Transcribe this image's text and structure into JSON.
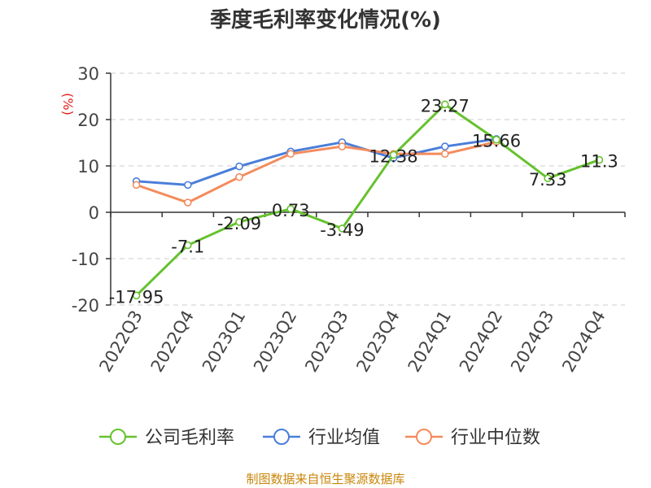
{
  "chart_data": {
    "type": "line",
    "title": "季度毛利率变化情况(%)",
    "ylabel": "(%)",
    "ylim": [
      -20,
      30
    ],
    "yticks": [
      30,
      20,
      10,
      0,
      -10,
      -20
    ],
    "grid": true,
    "legend_position": "bottom",
    "categories": [
      "2022Q3",
      "2022Q4",
      "2023Q1",
      "2023Q2",
      "2023Q3",
      "2023Q4",
      "2024Q1",
      "2024Q2",
      "2024Q3",
      "2024Q4"
    ],
    "series": [
      {
        "name": "公司毛利率",
        "color": "#66c22f",
        "values": [
          -17.95,
          -7.1,
          -2.09,
          0.73,
          -3.49,
          12.38,
          23.27,
          15.66,
          7.33,
          11.3
        ],
        "labels": [
          "-17.95",
          "-7.1",
          "-2.09",
          "0.73",
          "-3.49",
          "12.38",
          "23.27",
          "15.66",
          "7.33",
          "11.3"
        ]
      },
      {
        "name": "行业均值",
        "color": "#4a7ed9",
        "values": [
          6.7,
          5.9,
          9.9,
          13.1,
          15.1,
          11.7,
          14.2,
          15.8,
          null,
          null
        ]
      },
      {
        "name": "行业中位数",
        "color": "#f48b5c",
        "values": [
          5.9,
          2.1,
          7.6,
          12.6,
          14.2,
          12.6,
          12.6,
          15.2,
          null,
          null
        ]
      }
    ]
  },
  "footer": {
    "source": "制图数据来自恒生聚源数据库"
  }
}
